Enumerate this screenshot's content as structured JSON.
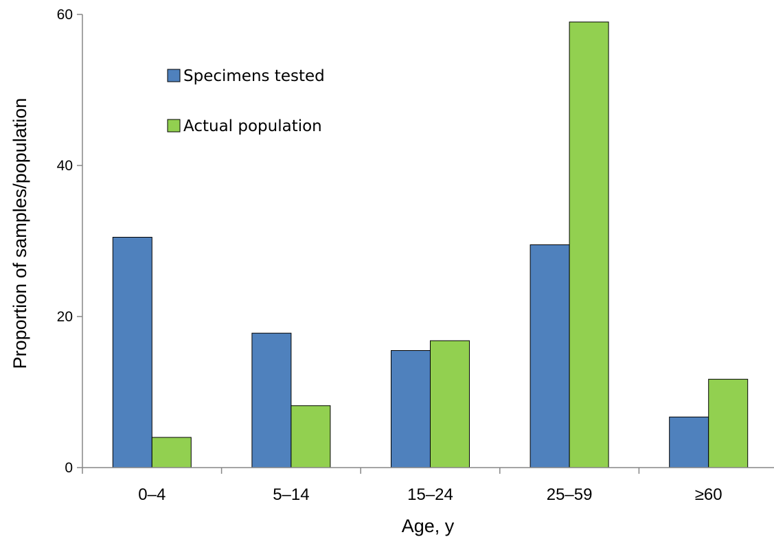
{
  "chart_data": {
    "type": "bar",
    "xlabel": "Age, y",
    "ylabel": "Proportion of samples/population",
    "categories": [
      "0–4",
      "5–14",
      "15–24",
      "25–59",
      "≥60"
    ],
    "ylim": [
      0,
      60
    ],
    "yticks": [
      0,
      20,
      40,
      60
    ],
    "grid": false,
    "legend_position": "top-left",
    "series": [
      {
        "name": "Specimens tested",
        "color": "#4f81bd",
        "values": [
          30.5,
          17.8,
          15.5,
          29.5,
          6.7
        ]
      },
      {
        "name": "Actual population",
        "color": "#92d050",
        "values": [
          4.0,
          8.2,
          16.8,
          59.0,
          11.7
        ]
      }
    ]
  }
}
